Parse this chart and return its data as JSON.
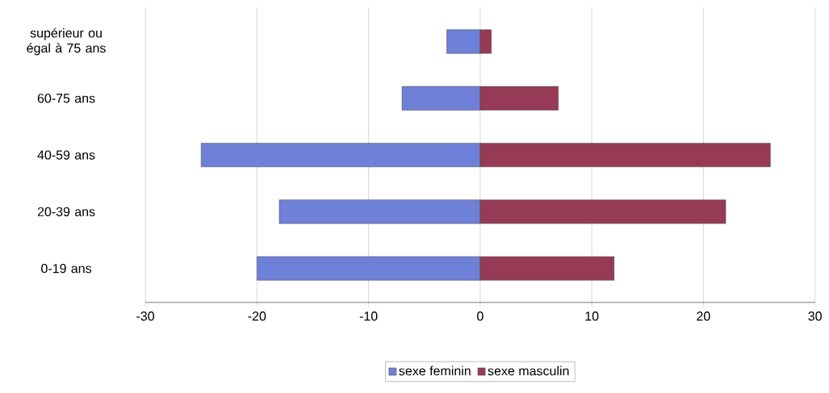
{
  "chart_data": {
    "type": "bar",
    "orientation": "horizontal",
    "categories": [
      "supérieur ou égal à 75 ans",
      "60-75 ans",
      "40-59 ans",
      "20-39 ans",
      "0-19 ans"
    ],
    "series": [
      {
        "name": "sexe feminin",
        "color": "#6f80d8",
        "values": [
          -3,
          -7,
          -25,
          -18,
          -20
        ]
      },
      {
        "name": "sexe masculin",
        "color": "#963b56",
        "values": [
          1,
          7,
          26,
          22,
          12
        ]
      }
    ],
    "xlim": [
      -30,
      30
    ],
    "xticks": [
      -30,
      -20,
      -10,
      0,
      10,
      20,
      30
    ],
    "grid": "x",
    "legend": "bottom",
    "stacked": true
  }
}
